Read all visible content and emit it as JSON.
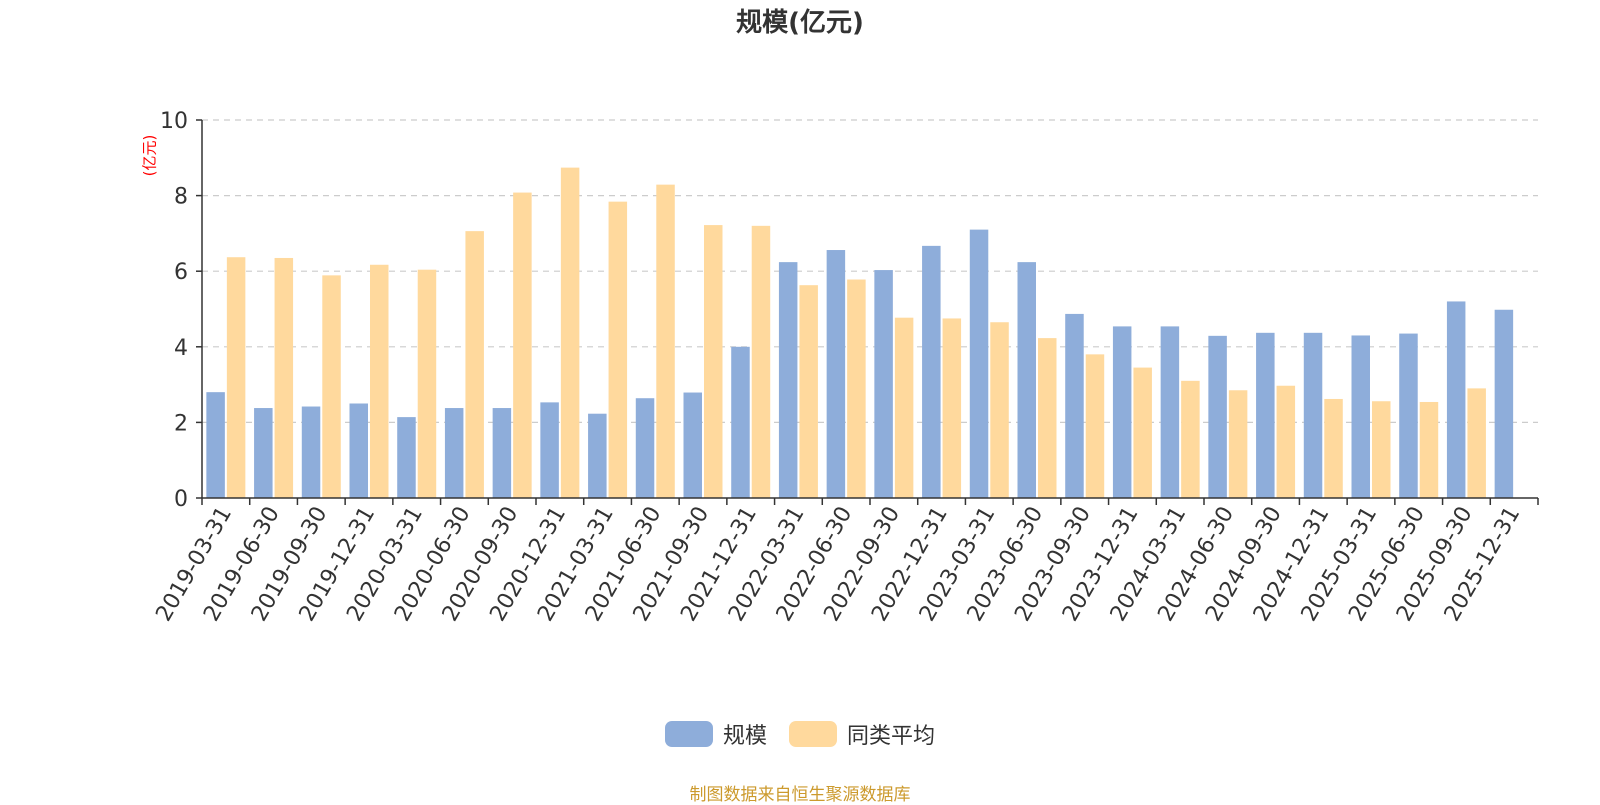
{
  "chart_data": {
    "type": "bar",
    "title": "规模(亿元)",
    "ylabel": "(亿元)",
    "xlabel": "",
    "ylim": [
      0,
      10
    ],
    "yticks": [
      0,
      2,
      4,
      6,
      8,
      10
    ],
    "grid": true,
    "legend_position": "bottom",
    "categories": [
      "2019-03-31",
      "2019-06-30",
      "2019-09-30",
      "2019-12-31",
      "2020-03-31",
      "2020-06-30",
      "2020-09-30",
      "2020-12-31",
      "2021-03-31",
      "2021-06-30",
      "2021-09-30",
      "2021-12-31",
      "2022-03-31",
      "2022-06-30",
      "2022-09-30",
      "2022-12-31",
      "2023-03-31",
      "2023-06-30",
      "2023-09-30",
      "2023-12-31",
      "2024-03-31",
      "2024-06-30",
      "2024-09-30",
      "2024-12-31",
      "2025-03-31",
      "2025-06-30",
      "2025-09-30",
      "2025-12-31"
    ],
    "series": [
      {
        "name": "规模",
        "color": "#8eadda",
        "values": [
          2.8,
          2.38,
          2.42,
          2.5,
          2.14,
          2.38,
          2.38,
          2.53,
          2.23,
          2.64,
          2.79,
          4.0,
          6.24,
          6.56,
          6.03,
          6.67,
          7.1,
          6.24,
          4.87,
          4.54,
          4.54,
          4.29,
          4.37,
          4.37,
          4.3,
          4.35,
          5.2,
          4.98
        ]
      },
      {
        "name": "同类平均",
        "color": "#ffd99d",
        "values": [
          6.37,
          6.35,
          5.89,
          6.17,
          6.04,
          7.06,
          8.08,
          8.74,
          7.84,
          8.29,
          7.22,
          7.2,
          5.63,
          5.78,
          4.77,
          4.75,
          4.65,
          4.23,
          3.8,
          3.45,
          3.1,
          2.85,
          2.97,
          2.62,
          2.56,
          2.54,
          2.9,
          null
        ]
      }
    ]
  },
  "source_note": "制图数据来自恒生聚源数据库",
  "colors": {
    "title": "#333333",
    "axis_unit": "#ff0000",
    "source_note": "#cc9a2d",
    "grid": "#cccccc",
    "axis": "#333333"
  }
}
